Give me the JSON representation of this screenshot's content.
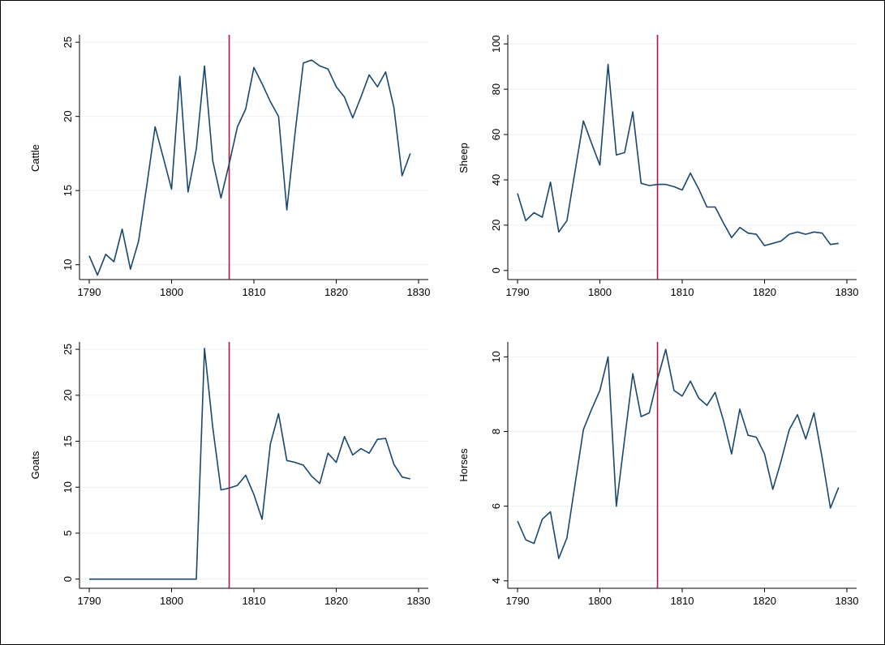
{
  "colors": {
    "series": "#1a476f",
    "reference_line": "#b5153f",
    "grid": "#eaf2f3",
    "frame": "#000000"
  },
  "chart_data": [
    {
      "type": "line",
      "ylabel": "Cattle",
      "xlabel": "",
      "xlim": [
        1790,
        1830
      ],
      "ylim": [
        9,
        25.5
      ],
      "xticks": [
        1790,
        1800,
        1810,
        1820,
        1830
      ],
      "yticks": [
        10,
        15,
        20,
        25
      ],
      "grid": true,
      "reference_x": 1807,
      "x": [
        1790,
        1791,
        1792,
        1793,
        1794,
        1795,
        1796,
        1797,
        1798,
        1799,
        1800,
        1801,
        1802,
        1803,
        1804,
        1805,
        1806,
        1807,
        1808,
        1809,
        1810,
        1811,
        1812,
        1813,
        1814,
        1815,
        1816,
        1817,
        1818,
        1819,
        1820,
        1821,
        1822,
        1823,
        1824,
        1825,
        1826,
        1827,
        1828,
        1829
      ],
      "values": [
        10.6,
        9.3,
        10.7,
        10.2,
        12.4,
        9.7,
        11.6,
        15.4,
        19.3,
        17.2,
        15.1,
        22.7,
        14.9,
        17.8,
        23.4,
        17.0,
        14.5,
        16.8,
        19.3,
        20.5,
        23.3,
        22.2,
        21.0,
        20.0,
        13.7,
        18.9,
        23.6,
        23.8,
        23.4,
        23.2,
        22.0,
        21.3,
        19.9,
        21.3,
        22.8,
        22.0,
        23.0,
        20.6,
        16.0,
        17.5
      ]
    },
    {
      "type": "line",
      "ylabel": "Sheep",
      "xlabel": "",
      "xlim": [
        1790,
        1830
      ],
      "ylim": [
        -4,
        104
      ],
      "xticks": [
        1790,
        1800,
        1810,
        1820,
        1830
      ],
      "yticks": [
        0,
        20,
        40,
        60,
        80,
        100
      ],
      "grid": true,
      "reference_x": 1807,
      "x": [
        1790,
        1791,
        1792,
        1793,
        1794,
        1795,
        1796,
        1797,
        1798,
        1799,
        1800,
        1801,
        1802,
        1803,
        1804,
        1805,
        1806,
        1807,
        1808,
        1809,
        1810,
        1811,
        1812,
        1813,
        1814,
        1815,
        1816,
        1817,
        1818,
        1819,
        1820,
        1821,
        1822,
        1823,
        1824,
        1825,
        1826,
        1827,
        1828,
        1829
      ],
      "values": [
        34,
        22,
        25.5,
        23.5,
        39,
        17,
        22,
        44,
        66,
        56,
        46.5,
        91,
        51,
        52,
        70,
        38.5,
        37.5,
        38,
        38,
        37,
        35.5,
        43,
        36,
        28,
        28,
        21,
        14.5,
        19,
        16.5,
        16,
        11,
        12,
        13,
        16,
        17,
        16,
        17,
        16.5,
        11.5,
        12
      ]
    },
    {
      "type": "line",
      "ylabel": "Goats",
      "xlabel": "",
      "xlim": [
        1790,
        1830
      ],
      "ylim": [
        -1,
        25.8
      ],
      "xticks": [
        1790,
        1800,
        1810,
        1820,
        1830
      ],
      "yticks": [
        0,
        5,
        10,
        15,
        20,
        25
      ],
      "grid": true,
      "reference_x": 1807,
      "x": [
        1790,
        1791,
        1792,
        1793,
        1794,
        1795,
        1796,
        1797,
        1798,
        1799,
        1800,
        1801,
        1802,
        1803,
        1804,
        1805,
        1806,
        1807,
        1808,
        1809,
        1810,
        1811,
        1812,
        1813,
        1814,
        1815,
        1816,
        1817,
        1818,
        1819,
        1820,
        1821,
        1822,
        1823,
        1824,
        1825,
        1826,
        1827,
        1828,
        1829
      ],
      "values": [
        0,
        0,
        0,
        0,
        0,
        0,
        0,
        0,
        0,
        0,
        0,
        0,
        0,
        0,
        25.1,
        16.5,
        9.7,
        9.9,
        10.2,
        11.3,
        9.2,
        6.5,
        14.7,
        18.0,
        12.9,
        12.7,
        12.4,
        11.2,
        10.4,
        13.7,
        12.7,
        15.5,
        13.5,
        14.2,
        13.7,
        15.2,
        15.3,
        12.5,
        11.1,
        10.9
      ]
    },
    {
      "type": "line",
      "ylabel": "Horses",
      "xlabel": "",
      "xlim": [
        1790,
        1830
      ],
      "ylim": [
        3.8,
        10.4
      ],
      "xticks": [
        1790,
        1800,
        1810,
        1820,
        1830
      ],
      "yticks": [
        4,
        6,
        8,
        10
      ],
      "grid": true,
      "reference_x": 1807,
      "x": [
        1790,
        1791,
        1792,
        1793,
        1794,
        1795,
        1796,
        1797,
        1798,
        1799,
        1800,
        1801,
        1802,
        1803,
        1804,
        1805,
        1806,
        1807,
        1808,
        1809,
        1810,
        1811,
        1812,
        1813,
        1814,
        1815,
        1816,
        1817,
        1818,
        1819,
        1820,
        1821,
        1822,
        1823,
        1824,
        1825,
        1826,
        1827,
        1828,
        1829
      ],
      "values": [
        5.6,
        5.1,
        5.0,
        5.65,
        5.85,
        4.6,
        5.15,
        6.6,
        8.05,
        8.6,
        9.1,
        10.0,
        6.0,
        7.8,
        9.55,
        8.4,
        8.5,
        9.4,
        10.2,
        9.1,
        8.95,
        9.35,
        8.9,
        8.7,
        9.05,
        8.3,
        7.4,
        8.6,
        7.9,
        7.85,
        7.4,
        6.45,
        7.2,
        8.05,
        8.45,
        7.8,
        8.5,
        7.3,
        5.95,
        6.5
      ]
    }
  ]
}
